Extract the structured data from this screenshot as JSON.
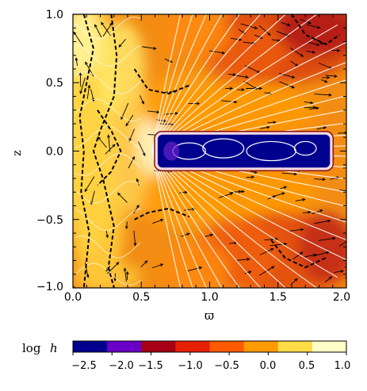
{
  "chart_data": {
    "type": "heatmap",
    "title": "",
    "xlabel": "ϖ",
    "ylabel": "z",
    "xlim": [
      0.0,
      2.0
    ],
    "ylim": [
      -1.0,
      1.0
    ],
    "x_ticks": [
      "0.0",
      "0.5",
      "1.0",
      "1.5",
      "2.0"
    ],
    "y_ticks": [
      "1.0",
      "0.5",
      "0.0",
      "−0.5",
      "−1.0"
    ],
    "x_tick_values": [
      0.0,
      0.5,
      1.0,
      1.5,
      2.0
    ],
    "y_tick_values": [
      1.0,
      0.5,
      0.0,
      -0.5,
      -1.0
    ],
    "grid": false,
    "disk_region": {
      "x": [
        0.62,
        1.88
      ],
      "z": [
        -0.12,
        0.12
      ],
      "log_h": -2.5
    },
    "colorbar": {
      "label": "log",
      "label_var": "h",
      "orientation": "horizontal",
      "range": [
        -2.5,
        1.0
      ],
      "tick_labels": [
        "−2.5",
        "−2.0",
        "−1.5",
        "−1.0",
        "−0.5",
        "0.0",
        "0.5",
        "1.0"
      ],
      "tick_values": [
        -2.5,
        -2.0,
        -1.5,
        -1.0,
        -0.5,
        0.0,
        0.5,
        1.0
      ],
      "colors": [
        "#00008f",
        "#6a00c8",
        "#a60014",
        "#e62000",
        "#ff5a00",
        "#ff9a00",
        "#ffdc48",
        "#ffffc8"
      ]
    },
    "overlays": {
      "magnetic_field_lines_color": "#ffffff",
      "velocity_vectors_color": "#000000",
      "dashed_contour_color": "#000000"
    }
  }
}
